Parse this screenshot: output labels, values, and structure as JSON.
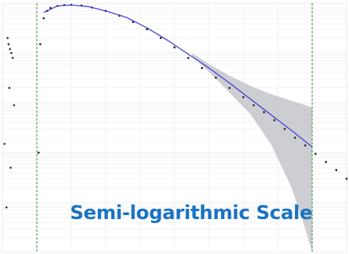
{
  "chart_data": {
    "type": "scatter",
    "title": "",
    "xlabel": "",
    "ylabel": "",
    "annotation": "Semi-logarithmic Scale",
    "x_scale": "linear",
    "y_scale": "log",
    "grid": true,
    "x_range": [
      0,
      100
    ],
    "y_range": [
      1e-05,
      1
    ],
    "reference_lines_x": [
      10,
      90
    ],
    "series": [
      {
        "kind": "points",
        "color": "#222222",
        "x": [
          10.5,
          11,
          12,
          13,
          14,
          16,
          18,
          20,
          23,
          26,
          30,
          34,
          38,
          42,
          46,
          50,
          54,
          58,
          62,
          66,
          70,
          73,
          76,
          79,
          82,
          85,
          88,
          91,
          94,
          97,
          100
        ],
        "y": [
          0.001,
          0.15,
          0.5,
          0.7,
          0.8,
          0.88,
          0.92,
          0.93,
          0.9,
          0.82,
          0.7,
          0.56,
          0.42,
          0.3,
          0.2,
          0.13,
          0.08,
          0.05,
          0.032,
          0.02,
          0.013,
          0.009,
          0.0065,
          0.0045,
          0.003,
          0.002,
          0.0014,
          0.00095,
          0.00065,
          0.00045,
          0.0003
        ]
      },
      {
        "kind": "fit_line",
        "color": "#3a3ad6",
        "x": [
          12,
          16,
          20,
          25,
          30,
          36,
          42,
          48,
          54,
          60,
          66,
          72,
          78,
          84,
          90
        ],
        "y": [
          0.65,
          0.88,
          0.92,
          0.85,
          0.7,
          0.52,
          0.32,
          0.18,
          0.095,
          0.05,
          0.025,
          0.012,
          0.0058,
          0.0028,
          0.0013
        ]
      },
      {
        "kind": "confidence_band",
        "color": "#c4c6ca",
        "x": [
          55,
          60,
          66,
          72,
          78,
          84,
          88,
          90
        ],
        "upper": [
          0.1,
          0.06,
          0.035,
          0.022,
          0.015,
          0.011,
          0.009,
          0.008
        ],
        "lower": [
          0.09,
          0.042,
          0.016,
          0.006,
          0.0015,
          0.0002,
          3e-05,
          1e-05
        ]
      },
      {
        "kind": "points",
        "color": "#333333",
        "x": [
          1.5,
          1.8,
          2.2,
          2.6,
          3.0,
          2.0,
          3.4,
          0.6,
          2.4,
          1.2
        ],
        "y": [
          0.2,
          0.15,
          0.12,
          0.1,
          0.08,
          0.02,
          0.009,
          0.0015,
          0.0005,
          8e-05
        ]
      }
    ],
    "colors": {
      "annotation_text": "#1a73c4",
      "reference_line": "#3a8a3a",
      "grid": "#eeeeee",
      "frame": "#dddddd"
    }
  }
}
